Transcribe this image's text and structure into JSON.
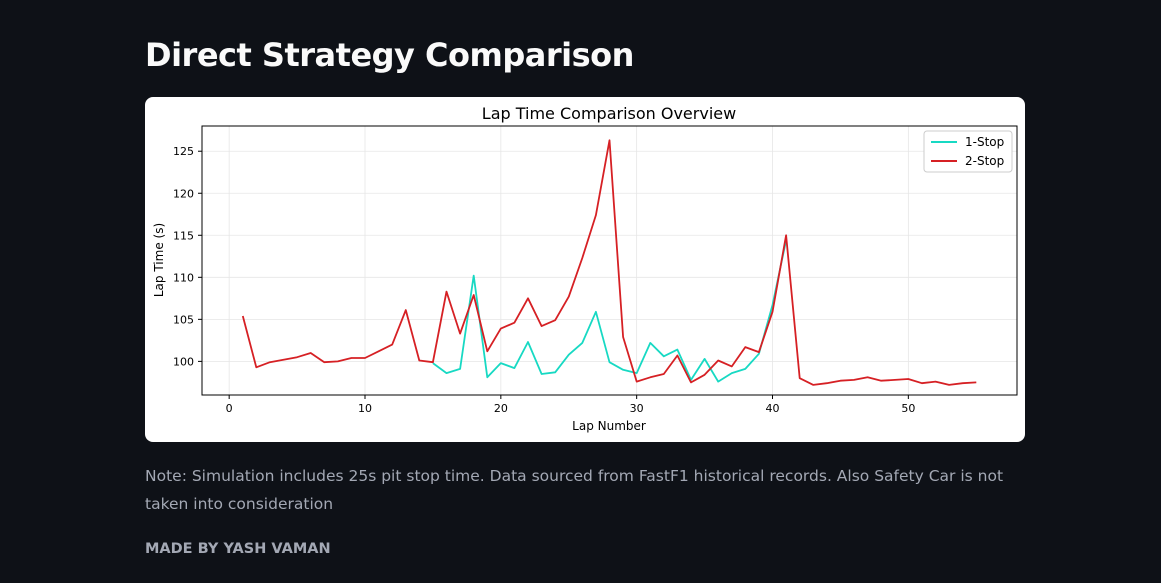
{
  "header": {
    "title": "Direct Strategy Comparison"
  },
  "note": "Note: Simulation includes 25s pit stop time. Data sourced from FastF1 historical records. Also Safety Car is not taken into consideration",
  "credit": "MADE BY YASH VAMAN",
  "colors": {
    "background": "#0e1117",
    "one_stop": "#17d9c3",
    "two_stop": "#d62024"
  },
  "chart_data": {
    "type": "line",
    "title": "Lap Time Comparison Overview",
    "xlabel": "Lap Number",
    "ylabel": "Lap Time (s)",
    "xlim": [
      -2,
      58
    ],
    "ylim": [
      96,
      128
    ],
    "xticks": [
      0,
      10,
      20,
      30,
      40,
      50
    ],
    "yticks": [
      100,
      105,
      110,
      115,
      120,
      125
    ],
    "grid": true,
    "legend_position": "top-right",
    "series": [
      {
        "name": "1-Stop",
        "color": "#17d9c3",
        "x": [
          15,
          16,
          17,
          18,
          19,
          20,
          21,
          22,
          23,
          24,
          25,
          26,
          27,
          28,
          29,
          30,
          31,
          32,
          33,
          34,
          35,
          36,
          37,
          38,
          39,
          40,
          41
        ],
        "y": [
          99.8,
          98.6,
          99.1,
          110.2,
          98.1,
          99.8,
          99.2,
          102.3,
          98.5,
          98.7,
          100.8,
          102.2,
          105.9,
          99.9,
          99.0,
          98.6,
          102.2,
          100.6,
          101.4,
          97.8,
          100.3,
          97.6,
          98.6,
          99.1,
          100.9,
          106.7,
          114.4
        ]
      },
      {
        "name": "2-Stop",
        "color": "#d62024",
        "x": [
          1,
          2,
          3,
          4,
          5,
          6,
          7,
          8,
          9,
          10,
          11,
          12,
          13,
          14,
          15,
          16,
          17,
          18,
          19,
          20,
          21,
          22,
          23,
          24,
          25,
          26,
          27,
          28,
          29,
          30,
          31,
          32,
          33,
          34,
          35,
          36,
          37,
          38,
          39,
          40,
          41,
          42,
          43,
          44,
          45,
          46,
          47,
          48,
          49,
          50,
          51,
          52,
          53,
          54,
          55
        ],
        "y": [
          105.4,
          99.3,
          99.9,
          100.2,
          100.5,
          101.0,
          99.9,
          100.0,
          100.4,
          100.4,
          101.2,
          102.0,
          106.1,
          100.1,
          99.9,
          108.3,
          103.3,
          107.9,
          101.2,
          103.9,
          104.6,
          107.5,
          104.2,
          104.9,
          107.7,
          112.3,
          117.4,
          126.3,
          102.9,
          97.6,
          98.1,
          98.5,
          100.7,
          97.5,
          98.4,
          100.1,
          99.4,
          101.7,
          101.1,
          105.9,
          115.0,
          98.0,
          97.2,
          97.4,
          97.7,
          97.8,
          98.1,
          97.7,
          97.8,
          97.9,
          97.4,
          97.6,
          97.2,
          97.4,
          97.5
        ]
      }
    ]
  }
}
